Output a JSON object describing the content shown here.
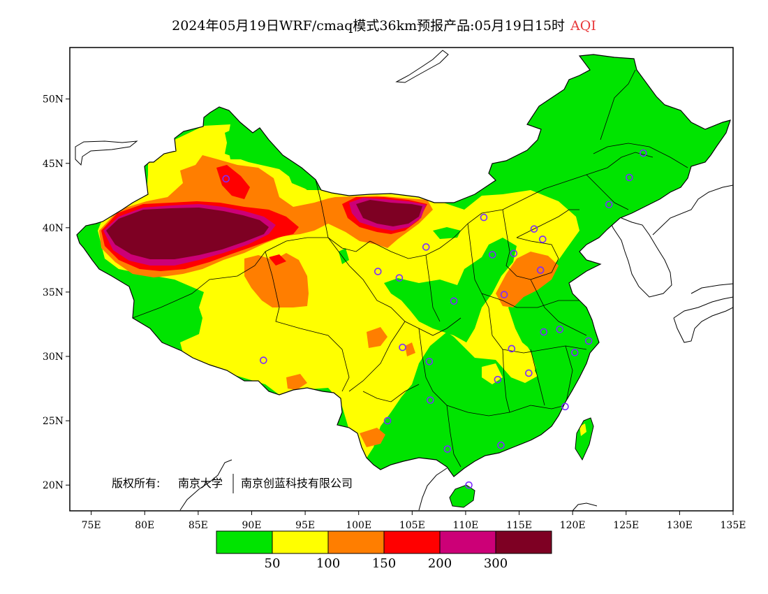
{
  "title": {
    "main": "2024年05月19日WRF/cmaq模式36km预报产品:05月19日15时",
    "variable": "AQI"
  },
  "copyright": {
    "owner_label": "版权所有:",
    "org1": "南京大学",
    "org2": "南京创蓝科技有限公司"
  },
  "axes": {
    "x_ticks": [
      "75E",
      "80E",
      "85E",
      "90E",
      "95E",
      "100E",
      "105E",
      "110E",
      "115E",
      "120E",
      "125E",
      "130E",
      "135E"
    ],
    "y_ticks": [
      "50N",
      "45N",
      "40N",
      "35N",
      "30N",
      "25N",
      "20N"
    ],
    "lon_range": [
      73,
      135
    ],
    "lat_range": [
      18,
      54
    ]
  },
  "legend": {
    "colors": [
      "#00e400",
      "#ffff00",
      "#ff7e00",
      "#ff0000",
      "#cc0077",
      "#7e0023"
    ],
    "labels": [
      "50",
      "100",
      "150",
      "200",
      "300"
    ]
  },
  "colors": {
    "good": "#00e400",
    "moderate": "#ffff00",
    "usg": "#ff7e00",
    "unhealthy": "#ff0000",
    "very_unhealthy": "#cc0077",
    "hazardous": "#7e0023",
    "station_marker": "#7b2cff"
  },
  "stations": [
    [
      87.6,
      43.8
    ],
    [
      91.1,
      29.7
    ],
    [
      101.8,
      36.6
    ],
    [
      103.8,
      36.1
    ],
    [
      106.3,
      38.5
    ],
    [
      111.7,
      40.8
    ],
    [
      112.5,
      37.9
    ],
    [
      114.5,
      38.0
    ],
    [
      116.4,
      39.9
    ],
    [
      117.2,
      39.1
    ],
    [
      117.0,
      36.7
    ],
    [
      113.6,
      34.8
    ],
    [
      108.9,
      34.3
    ],
    [
      104.1,
      30.7
    ],
    [
      106.6,
      29.6
    ],
    [
      106.7,
      26.6
    ],
    [
      102.7,
      25.0
    ],
    [
      108.3,
      22.8
    ],
    [
      113.3,
      23.1
    ],
    [
      110.3,
      20.0
    ],
    [
      113.0,
      28.2
    ],
    [
      115.9,
      28.7
    ],
    [
      114.3,
      30.6
    ],
    [
      117.3,
      31.9
    ],
    [
      118.8,
      32.1
    ],
    [
      120.2,
      30.3
    ],
    [
      121.5,
      31.2
    ],
    [
      119.3,
      26.1
    ],
    [
      123.4,
      41.8
    ],
    [
      125.3,
      43.9
    ],
    [
      126.6,
      45.8
    ]
  ]
}
